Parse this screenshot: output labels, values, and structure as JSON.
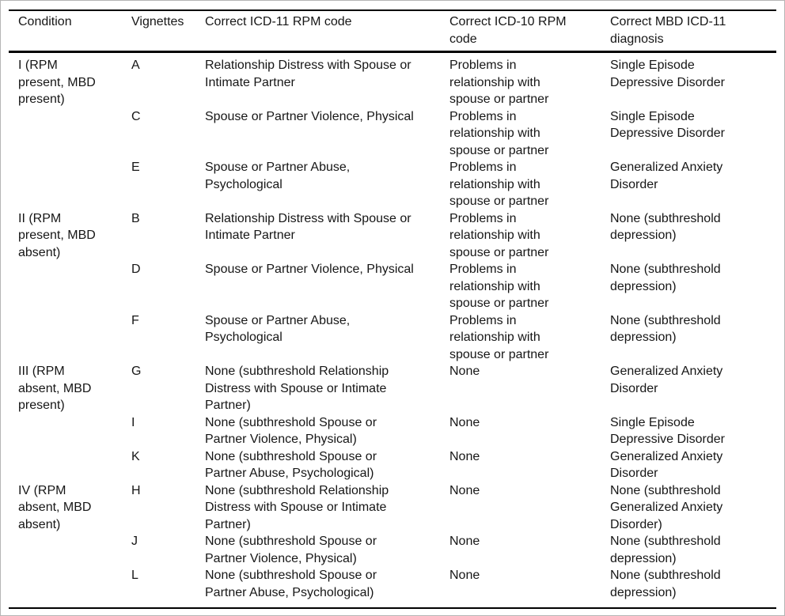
{
  "page": {
    "background_color": "#ffffff",
    "frame_border_color": "#b5b5b5",
    "rule_color": "#000000",
    "text_color": "#161616"
  },
  "table": {
    "columns": [
      "Condition",
      "Vignettes",
      "Correct ICD-11 RPM code",
      "Correct ICD-10 RPM code",
      "Correct MBD ICD-11 diagnosis"
    ],
    "groups": [
      {
        "condition": "I (RPM present, MBD present)",
        "rows": [
          {
            "vignette": "A",
            "icd11_rpm": "Relationship Distress with Spouse or Intimate Partner",
            "icd10_rpm": "Problems in relationship with spouse or partner",
            "mbd_diagnosis": "Single Episode Depressive Disorder"
          },
          {
            "vignette": "C",
            "icd11_rpm": "Spouse or Partner Violence, Physical",
            "icd10_rpm": "Problems in relationship with spouse or partner",
            "mbd_diagnosis": "Single Episode Depressive Disorder"
          },
          {
            "vignette": "E",
            "icd11_rpm": "Spouse or Partner Abuse, Psychological",
            "icd10_rpm": "Problems in relationship with spouse or partner",
            "mbd_diagnosis": "Generalized Anxiety Disorder"
          }
        ]
      },
      {
        "condition": "II (RPM present, MBD absent)",
        "rows": [
          {
            "vignette": "B",
            "icd11_rpm": "Relationship Distress with Spouse or Intimate Partner",
            "icd10_rpm": "Problems in relationship with spouse or partner",
            "mbd_diagnosis": "None (subthreshold depression)"
          },
          {
            "vignette": "D",
            "icd11_rpm": "Spouse or Partner Violence, Physical",
            "icd10_rpm": "Problems in relationship with spouse or partner",
            "mbd_diagnosis": "None (subthreshold depression)"
          },
          {
            "vignette": "F",
            "icd11_rpm": "Spouse or Partner Abuse, Psychological",
            "icd10_rpm": "Problems in relationship with spouse or partner",
            "mbd_diagnosis": "None (subthreshold depression)"
          }
        ]
      },
      {
        "condition": "III (RPM absent, MBD present)",
        "rows": [
          {
            "vignette": "G",
            "icd11_rpm": "None (subthreshold Relationship Distress with Spouse or Intimate Partner)",
            "icd10_rpm": "None",
            "mbd_diagnosis": "Generalized Anxiety Disorder"
          },
          {
            "vignette": "I",
            "icd11_rpm": "None (subthreshold Spouse or Partner Violence, Physical)",
            "icd10_rpm": "None",
            "mbd_diagnosis": "Single Episode Depressive Disorder"
          },
          {
            "vignette": "K",
            "icd11_rpm": "None (subthreshold Spouse or Partner Abuse, Psychological)",
            "icd10_rpm": "None",
            "mbd_diagnosis": "Generalized Anxiety Disorder"
          }
        ]
      },
      {
        "condition": "IV (RPM absent, MBD absent)",
        "rows": [
          {
            "vignette": "H",
            "icd11_rpm": "None (subthreshold Relationship Distress with Spouse or Intimate Partner)",
            "icd10_rpm": "None",
            "mbd_diagnosis": "None (subthreshold Generalized Anxiety Disorder)"
          },
          {
            "vignette": "J",
            "icd11_rpm": "None (subthreshold Spouse or Partner Violence, Physical)",
            "icd10_rpm": "None",
            "mbd_diagnosis": "None (subthreshold depression)"
          },
          {
            "vignette": "L",
            "icd11_rpm": "None (subthreshold Spouse or Partner Abuse, Psychological)",
            "icd10_rpm": "None",
            "mbd_diagnosis": "None (subthreshold depression)"
          }
        ]
      }
    ]
  }
}
